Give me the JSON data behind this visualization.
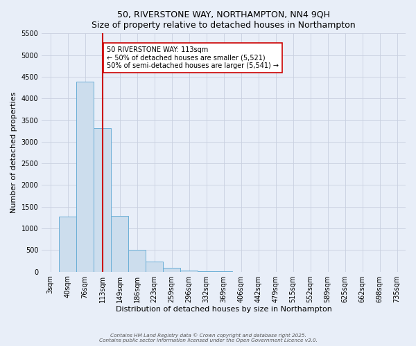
{
  "title": "50, RIVERSTONE WAY, NORTHAMPTON, NN4 9QH",
  "subtitle": "Size of property relative to detached houses in Northampton",
  "xlabel": "Distribution of detached houses by size in Northampton",
  "ylabel": "Number of detached properties",
  "bar_labels": [
    "3sqm",
    "40sqm",
    "76sqm",
    "113sqm",
    "149sqm",
    "186sqm",
    "223sqm",
    "259sqm",
    "296sqm",
    "332sqm",
    "369sqm",
    "406sqm",
    "442sqm",
    "479sqm",
    "515sqm",
    "552sqm",
    "589sqm",
    "625sqm",
    "662sqm",
    "698sqm",
    "735sqm"
  ],
  "bar_values": [
    0,
    1270,
    4380,
    3310,
    1280,
    500,
    230,
    85,
    30,
    5,
    2,
    0,
    0,
    0,
    0,
    0,
    0,
    0,
    0,
    0,
    0
  ],
  "bar_color": "#ccdded",
  "bar_edge_color": "#6aaed6",
  "vline_x_idx": 3,
  "vline_color": "#cc0000",
  "annotation_line1": "50 RIVERSTONE WAY: 113sqm",
  "annotation_line2": "← 50% of detached houses are smaller (5,521)",
  "annotation_line3": "50% of semi-detached houses are larger (5,541) →",
  "annotation_box_facecolor": "#ffffff",
  "annotation_box_edgecolor": "#cc0000",
  "ylim": [
    0,
    5500
  ],
  "yticks": [
    0,
    500,
    1000,
    1500,
    2000,
    2500,
    3000,
    3500,
    4000,
    4500,
    5000,
    5500
  ],
  "bg_color": "#e8eef8",
  "grid_color": "#c8d0e0",
  "footer_line1": "Contains HM Land Registry data © Crown copyright and database right 2025.",
  "footer_line2": "Contains public sector information licensed under the Open Government Licence v3.0."
}
